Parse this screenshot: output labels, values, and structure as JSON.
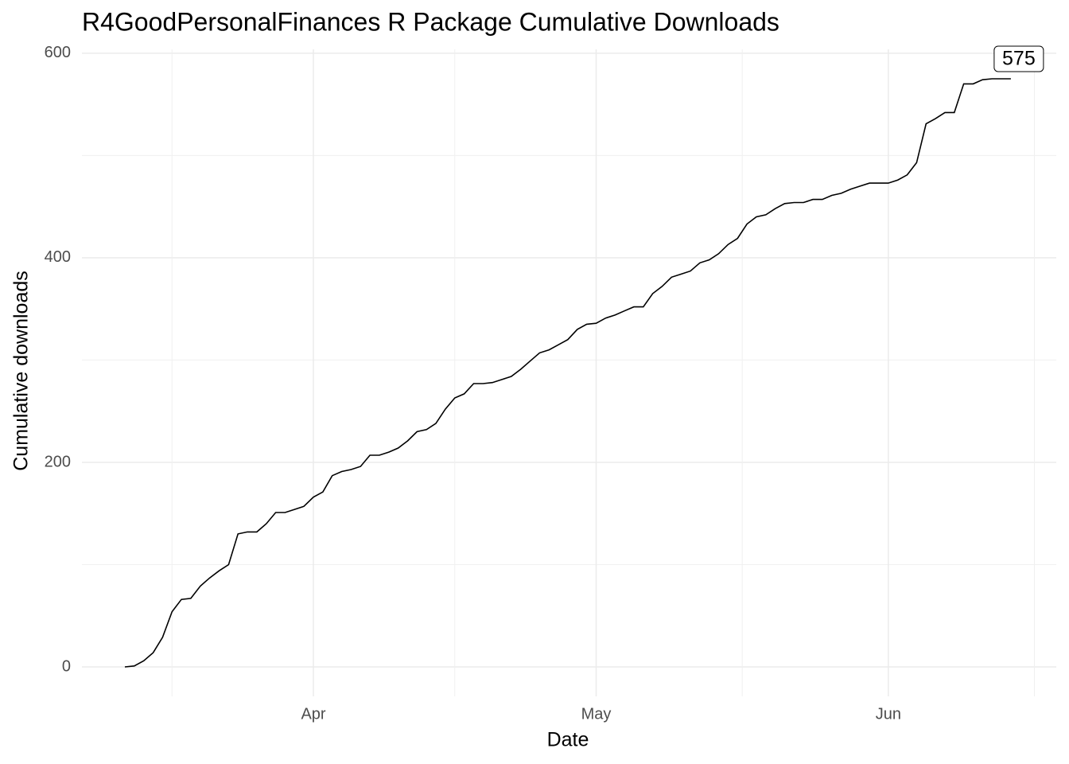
{
  "chart_data": {
    "type": "line",
    "title": "R4GoodPersonalFinances R Package Cumulative Downloads",
    "x_label": "Date",
    "y_label": "Cumulative downloads",
    "categories": [
      null,
      null,
      null,
      null,
      null,
      null,
      null,
      null,
      null,
      null,
      null,
      null,
      null,
      null,
      null,
      null,
      null,
      null,
      null,
      null,
      "Apr",
      null,
      null,
      null,
      null,
      null,
      null,
      null,
      null,
      null,
      null,
      null,
      null,
      null,
      null,
      null,
      null,
      null,
      null,
      null,
      null,
      null,
      null,
      null,
      null,
      null,
      null,
      null,
      null,
      null,
      "May",
      null,
      null,
      null,
      null,
      null,
      null,
      null,
      null,
      null,
      null,
      null,
      null,
      null,
      null,
      null,
      null,
      null,
      null,
      null,
      null,
      null,
      null,
      null,
      null,
      null,
      null,
      null,
      null,
      null,
      null,
      "Jun",
      null,
      null,
      null,
      null,
      null,
      null,
      null,
      null,
      null,
      null,
      null,
      null,
      null
    ],
    "values": [
      0,
      1,
      6,
      14,
      29,
      54,
      66,
      67,
      79,
      87,
      94,
      100,
      130,
      132,
      132,
      140,
      151,
      151,
      154,
      157,
      166,
      171,
      187,
      191,
      193,
      196,
      207,
      207,
      210,
      214,
      221,
      230,
      232,
      238,
      252,
      263,
      267,
      277,
      277,
      278,
      281,
      284,
      291,
      299,
      307,
      310,
      315,
      320,
      330,
      335,
      336,
      341,
      344,
      348,
      352,
      352,
      365,
      372,
      381,
      384,
      387,
      395,
      398,
      404,
      413,
      419,
      433,
      440,
      442,
      448,
      453,
      454,
      454,
      457,
      457,
      461,
      463,
      467,
      470,
      473,
      473,
      473,
      476,
      481,
      493,
      531,
      536,
      542,
      542,
      570,
      570,
      574,
      575,
      575,
      575
    ],
    "color": "#000000",
    "ylim": [
      -28.75,
      603.75
    ],
    "yticks": [
      0,
      200,
      400,
      600
    ],
    "grid": true
  }
}
